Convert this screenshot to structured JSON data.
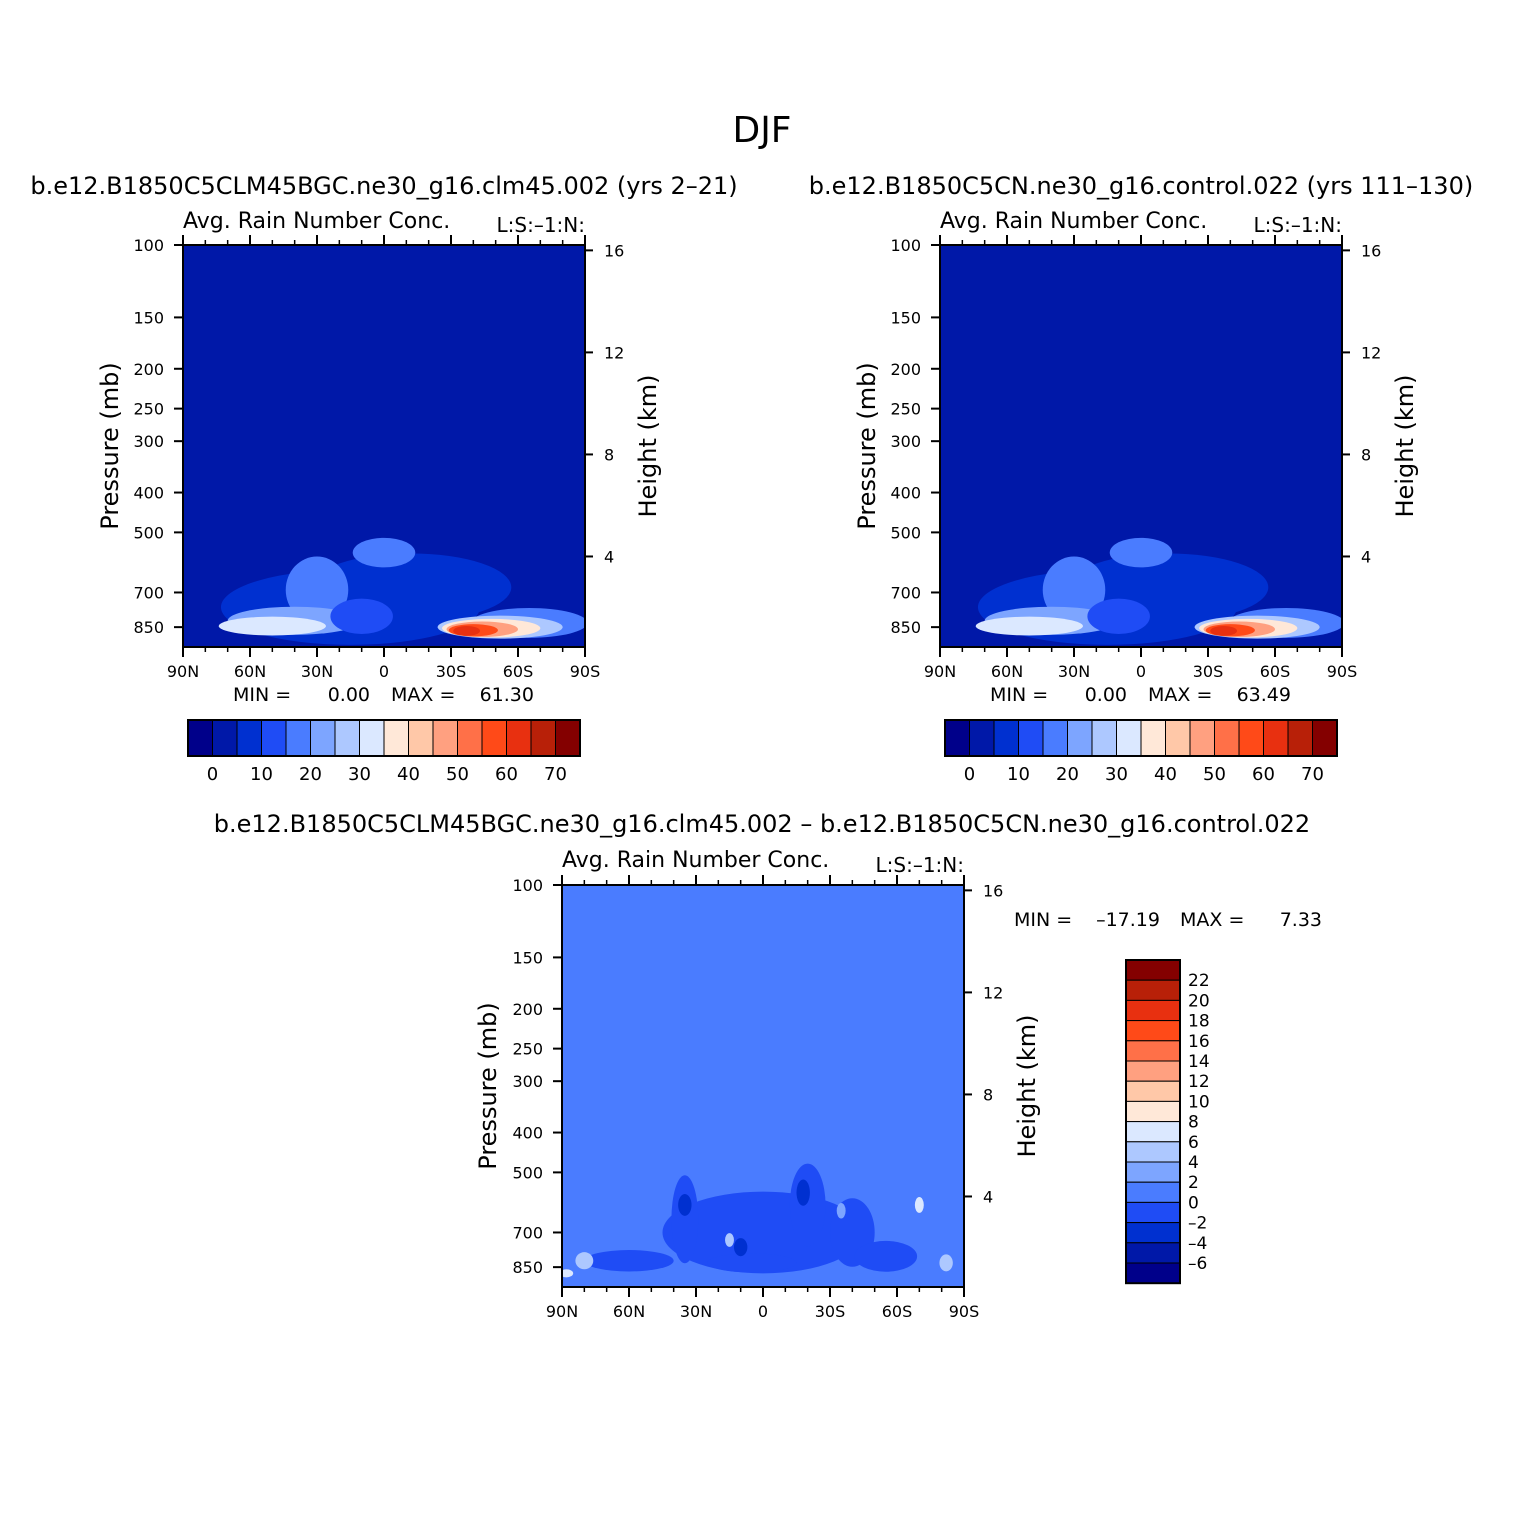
{
  "figure": {
    "title": "DJF"
  },
  "palette": {
    "abs": [
      "#00008a",
      "#0018a8",
      "#0030d0",
      "#1f4cf5",
      "#4a7cff",
      "#7da5ff",
      "#adc8ff",
      "#dbe8ff",
      "#ffe8d8",
      "#ffc8a8",
      "#ffa080",
      "#ff7048",
      "#ff4a18",
      "#e83010",
      "#b82008",
      "#840000"
    ],
    "diff": [
      "#00008a",
      "#0018a8",
      "#0030d0",
      "#1f4cf5",
      "#4a7cff",
      "#7da5ff",
      "#adc8ff",
      "#dbe8ff",
      "#ffe8d8",
      "#ffc8a8",
      "#ffa080",
      "#ff7048",
      "#ff4a18",
      "#e83010",
      "#b82008",
      "#840000"
    ]
  },
  "chart_data": [
    {
      "type": "heatmap",
      "run_title": "b.e12.B1850C5CLM45BGC.ne30_g16.clm45.002 (yrs 2–21)",
      "title": "Avg. Rain Number Conc.",
      "right_label": "L:S:–1:N:",
      "ylabel": "Pressure (mb)",
      "y2label": "Height (km)",
      "x_ticks": [
        "90N",
        "60N",
        "30N",
        "0",
        "30S",
        "60S",
        "90S"
      ],
      "y_ticks": [
        "100",
        "150",
        "200",
        "250",
        "300",
        "400",
        "500",
        "700",
        "850"
      ],
      "y2_ticks": [
        "16",
        "12",
        "8",
        "4"
      ],
      "stats": {
        "min_label": "MIN =",
        "min": "0.00",
        "max_label": "MAX =",
        "max": "61.30"
      },
      "colorbar": {
        "labels": [
          "0",
          "10",
          "20",
          "30",
          "40",
          "50",
          "60",
          "70"
        ]
      },
      "background_level": 1,
      "blobs": [
        {
          "lat": 15,
          "p": 760,
          "w": 58,
          "h": 300,
          "level": 2
        },
        {
          "lat": -12,
          "p": 680,
          "w": 45,
          "h": 240,
          "level": 2
        },
        {
          "lat": 0,
          "p": 560,
          "w": 14,
          "h": 80,
          "level": 4
        },
        {
          "lat": 30,
          "p": 690,
          "w": 14,
          "h": 240,
          "level": 4
        },
        {
          "lat": 40,
          "p": 820,
          "w": 30,
          "h": 110,
          "level": 5
        },
        {
          "lat": 50,
          "p": 845,
          "w": 24,
          "h": 70,
          "level": 7
        },
        {
          "lat": 10,
          "p": 800,
          "w": 14,
          "h": 140,
          "level": 3
        },
        {
          "lat": -65,
          "p": 830,
          "w": 26,
          "h": 120,
          "level": 4
        },
        {
          "lat": -52,
          "p": 850,
          "w": 28,
          "h": 90,
          "level": 6
        },
        {
          "lat": -48,
          "p": 855,
          "w": 22,
          "h": 70,
          "level": 8
        },
        {
          "lat": -44,
          "p": 860,
          "w": 16,
          "h": 55,
          "level": 10
        },
        {
          "lat": -40,
          "p": 865,
          "w": 11,
          "h": 40,
          "level": 12
        },
        {
          "lat": -37,
          "p": 868,
          "w": 6,
          "h": 28,
          "level": 13
        }
      ]
    },
    {
      "type": "heatmap",
      "run_title": "b.e12.B1850C5CN.ne30_g16.control.022 (yrs 111–130)",
      "title": "Avg. Rain Number Conc.",
      "right_label": "L:S:–1:N:",
      "ylabel": "Pressure (mb)",
      "y2label": "Height (km)",
      "x_ticks": [
        "90N",
        "60N",
        "30N",
        "0",
        "30S",
        "60S",
        "90S"
      ],
      "y_ticks": [
        "100",
        "150",
        "200",
        "250",
        "300",
        "400",
        "500",
        "700",
        "850"
      ],
      "y2_ticks": [
        "16",
        "12",
        "8",
        "4"
      ],
      "stats": {
        "min_label": "MIN =",
        "min": "0.00",
        "max_label": "MAX =",
        "max": "63.49"
      },
      "colorbar": {
        "labels": [
          "0",
          "10",
          "20",
          "30",
          "40",
          "50",
          "60",
          "70"
        ]
      },
      "background_level": 1,
      "blobs": [
        {
          "lat": 15,
          "p": 760,
          "w": 58,
          "h": 300,
          "level": 2
        },
        {
          "lat": -12,
          "p": 680,
          "w": 45,
          "h": 240,
          "level": 2
        },
        {
          "lat": 0,
          "p": 560,
          "w": 14,
          "h": 80,
          "level": 4
        },
        {
          "lat": 30,
          "p": 690,
          "w": 14,
          "h": 240,
          "level": 4
        },
        {
          "lat": 40,
          "p": 820,
          "w": 30,
          "h": 110,
          "level": 5
        },
        {
          "lat": 50,
          "p": 845,
          "w": 24,
          "h": 70,
          "level": 7
        },
        {
          "lat": 10,
          "p": 800,
          "w": 14,
          "h": 140,
          "level": 3
        },
        {
          "lat": -65,
          "p": 830,
          "w": 26,
          "h": 120,
          "level": 4
        },
        {
          "lat": -52,
          "p": 850,
          "w": 28,
          "h": 90,
          "level": 6
        },
        {
          "lat": -48,
          "p": 855,
          "w": 22,
          "h": 70,
          "level": 8
        },
        {
          "lat": -44,
          "p": 860,
          "w": 16,
          "h": 55,
          "level": 10
        },
        {
          "lat": -40,
          "p": 865,
          "w": 11,
          "h": 40,
          "level": 12
        },
        {
          "lat": -37,
          "p": 868,
          "w": 6,
          "h": 28,
          "level": 13
        }
      ]
    },
    {
      "type": "heatmap",
      "run_title": "b.e12.B1850C5CLM45BGC.ne30_g16.clm45.002 – b.e12.B1850C5CN.ne30_g16.control.022",
      "title": "Avg. Rain Number Conc.",
      "right_label": "L:S:–1:N:",
      "ylabel": "Pressure (mb)",
      "y2label": "Height (km)",
      "x_ticks": [
        "90N",
        "60N",
        "30N",
        "0",
        "30S",
        "60S",
        "90S"
      ],
      "y_ticks": [
        "100",
        "150",
        "200",
        "250",
        "300",
        "400",
        "500",
        "700",
        "850"
      ],
      "y2_ticks": [
        "16",
        "12",
        "8",
        "4"
      ],
      "stats": {
        "min_label": "MIN =",
        "min": "–17.19",
        "max_label": "MAX =",
        "max": "7.33"
      },
      "colorbar": {
        "labels": [
          "22",
          "20",
          "18",
          "16",
          "14",
          "12",
          "10",
          "8",
          "6",
          "4",
          "2",
          "0",
          "–2",
          "–4",
          "–6"
        ]
      },
      "background_level": 4,
      "blobs": [
        {
          "lat": 0,
          "p": 700,
          "w": 45,
          "h": 300,
          "level": 3
        },
        {
          "lat": -20,
          "p": 600,
          "w": 8,
          "h": 260,
          "level": 3
        },
        {
          "lat": 35,
          "p": 650,
          "w": 6,
          "h": 300,
          "level": 3
        },
        {
          "lat": -40,
          "p": 700,
          "w": 10,
          "h": 250,
          "level": 3
        },
        {
          "lat": 60,
          "p": 820,
          "w": 20,
          "h": 80,
          "level": 3
        },
        {
          "lat": 5,
          "p": 830,
          "w": 20,
          "h": 70,
          "level": 3
        },
        {
          "lat": -55,
          "p": 800,
          "w": 14,
          "h": 120,
          "level": 3
        },
        {
          "lat": 35,
          "p": 600,
          "w": 3,
          "h": 60,
          "level": 2
        },
        {
          "lat": -18,
          "p": 560,
          "w": 3,
          "h": 70,
          "level": 2
        },
        {
          "lat": 10,
          "p": 760,
          "w": 3,
          "h": 60,
          "level": 2
        },
        {
          "lat": 80,
          "p": 820,
          "w": 4,
          "h": 60,
          "level": 6
        },
        {
          "lat": 88,
          "p": 880,
          "w": 3,
          "h": 20,
          "level": 7
        },
        {
          "lat": -70,
          "p": 600,
          "w": 2,
          "h": 40,
          "level": 7
        },
        {
          "lat": -82,
          "p": 830,
          "w": 3,
          "h": 60,
          "level": 6
        },
        {
          "lat": 15,
          "p": 730,
          "w": 2,
          "h": 40,
          "level": 6
        },
        {
          "lat": -35,
          "p": 620,
          "w": 2,
          "h": 40,
          "level": 5
        }
      ]
    }
  ]
}
